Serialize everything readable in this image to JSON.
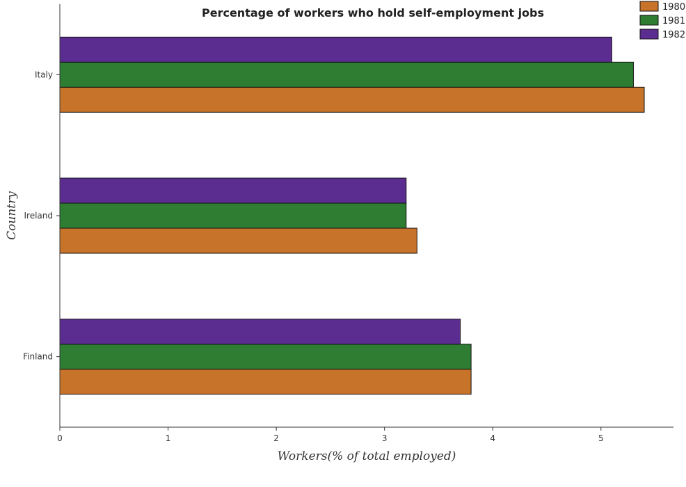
{
  "chart_data": {
    "type": "bar",
    "orientation": "horizontal",
    "title": "Percentage of workers who hold self-employment jobs",
    "xlabel": "Workers(% of total employed)",
    "ylabel": "Country",
    "categories": [
      "Finland",
      "Ireland",
      "Italy"
    ],
    "series": [
      {
        "name": "1980",
        "color": "#c8732a",
        "values": [
          3.8,
          3.3,
          5.4
        ]
      },
      {
        "name": "1981",
        "color": "#2e7d32",
        "values": [
          3.8,
          3.2,
          5.3
        ]
      },
      {
        "name": "1982",
        "color": "#5c2d91",
        "values": [
          3.7,
          3.2,
          5.1
        ]
      }
    ],
    "xlim": [
      0,
      5.67
    ],
    "xticks": [
      "0",
      "1",
      "2",
      "3",
      "4",
      "5"
    ],
    "grid": false,
    "legend_position": "top-right"
  }
}
